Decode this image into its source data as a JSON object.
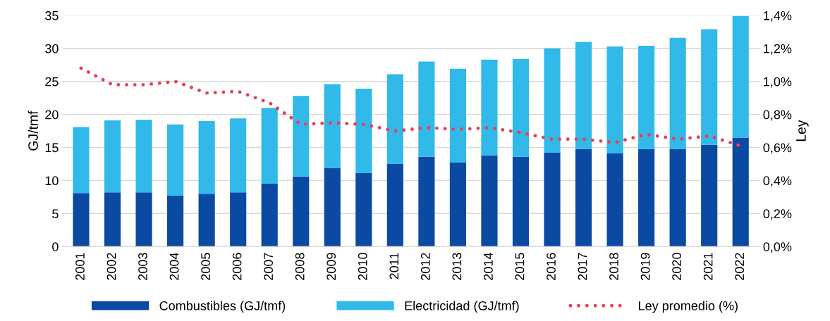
{
  "chart_data": {
    "type": "bar",
    "stacked": true,
    "ylabel": "GJ/tmf",
    "y2label": "Ley",
    "categories": [
      "2001",
      "2002",
      "2003",
      "2004",
      "2005",
      "2006",
      "2007",
      "2008",
      "2009",
      "2010",
      "2011",
      "2012",
      "2013",
      "2014",
      "2015",
      "2016",
      "2017",
      "2018",
      "2019",
      "2020",
      "2021",
      "2022"
    ],
    "series": [
      {
        "name": "Combustibles (GJ/tmf)",
        "color": "#0b4aa2",
        "values": [
          8.1,
          8.2,
          8.2,
          7.7,
          8.0,
          8.2,
          9.5,
          10.6,
          11.9,
          11.1,
          12.5,
          13.6,
          12.7,
          13.8,
          13.6,
          14.2,
          14.8,
          14.1,
          14.8,
          14.8,
          15.4,
          16.5
        ]
      },
      {
        "name": "Electricidad (GJ/tmf)",
        "color": "#31b9ea",
        "values": [
          10.0,
          10.9,
          11.0,
          10.8,
          11.0,
          11.2,
          11.5,
          12.2,
          12.7,
          12.8,
          13.6,
          14.4,
          14.2,
          14.5,
          14.8,
          15.8,
          16.2,
          16.2,
          15.6,
          16.8,
          17.5,
          18.4
        ]
      },
      {
        "name": "Ley promedio (%)",
        "type": "line",
        "axis": "y2",
        "color": "#e8405a",
        "line_style": "dotted",
        "marker": "none",
        "values": [
          1.08,
          0.98,
          0.98,
          1.0,
          0.93,
          0.94,
          0.87,
          0.74,
          0.75,
          0.74,
          0.7,
          0.72,
          0.71,
          0.72,
          0.69,
          0.65,
          0.65,
          0.63,
          0.68,
          0.65,
          0.67,
          0.61
        ]
      }
    ],
    "ylim": [
      0,
      35
    ],
    "yticks": [
      0,
      5,
      10,
      15,
      20,
      25,
      30,
      35
    ],
    "y2lim": [
      0,
      1.4
    ],
    "y2ticks": [
      {
        "value": 0,
        "label": "0,0%"
      },
      {
        "value": 0.2,
        "label": "0,2%"
      },
      {
        "value": 0.4,
        "label": "0,4%"
      },
      {
        "value": 0.6,
        "label": "0,6%"
      },
      {
        "value": 0.8,
        "label": "0,8%"
      },
      {
        "value": 1.0,
        "label": "1,0%"
      },
      {
        "value": 1.2,
        "label": "1,2%"
      },
      {
        "value": 1.4,
        "label": "1,4%"
      }
    ],
    "grid": "y",
    "legend": "bottom"
  }
}
